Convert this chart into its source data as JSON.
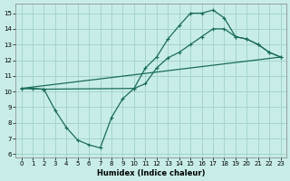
{
  "xlabel": "Humidex (Indice chaleur)",
  "bg_color": "#c8ede8",
  "grid_color": "#a4d4cc",
  "line_color": "#1a6b5a",
  "xlim": [
    -0.5,
    23.5
  ],
  "ylim": [
    5.8,
    15.6
  ],
  "xticks": [
    0,
    1,
    2,
    3,
    4,
    5,
    6,
    7,
    8,
    9,
    10,
    11,
    12,
    13,
    14,
    15,
    16,
    17,
    18,
    19,
    20,
    21,
    22,
    23
  ],
  "yticks": [
    6,
    7,
    8,
    9,
    10,
    11,
    12,
    13,
    14,
    15
  ],
  "curve1_x": [
    0,
    1,
    2,
    3,
    4,
    5,
    6,
    7,
    8,
    9,
    10,
    11,
    12,
    13,
    14,
    15,
    16,
    17,
    18,
    19,
    20,
    21,
    22,
    23
  ],
  "curve1_y": [
    10.2,
    10.2,
    10.15,
    8.8,
    7.7,
    6.9,
    6.6,
    6.4,
    8.35,
    9.55,
    10.2,
    11.5,
    12.2,
    13.35,
    14.2,
    15.0,
    15.0,
    15.2,
    14.7,
    13.5,
    13.35,
    13.0,
    12.5,
    12.2
  ],
  "curve2_x": [
    0,
    2,
    10,
    11,
    12,
    13,
    14,
    15,
    16,
    17,
    18,
    19,
    20,
    21,
    22,
    23
  ],
  "curve2_y": [
    10.2,
    10.15,
    10.2,
    10.5,
    11.5,
    12.15,
    12.5,
    13.0,
    13.5,
    14.0,
    14.0,
    13.5,
    13.35,
    13.0,
    12.5,
    12.2
  ],
  "line3_x": [
    0,
    23
  ],
  "line3_y": [
    10.2,
    12.2
  ]
}
